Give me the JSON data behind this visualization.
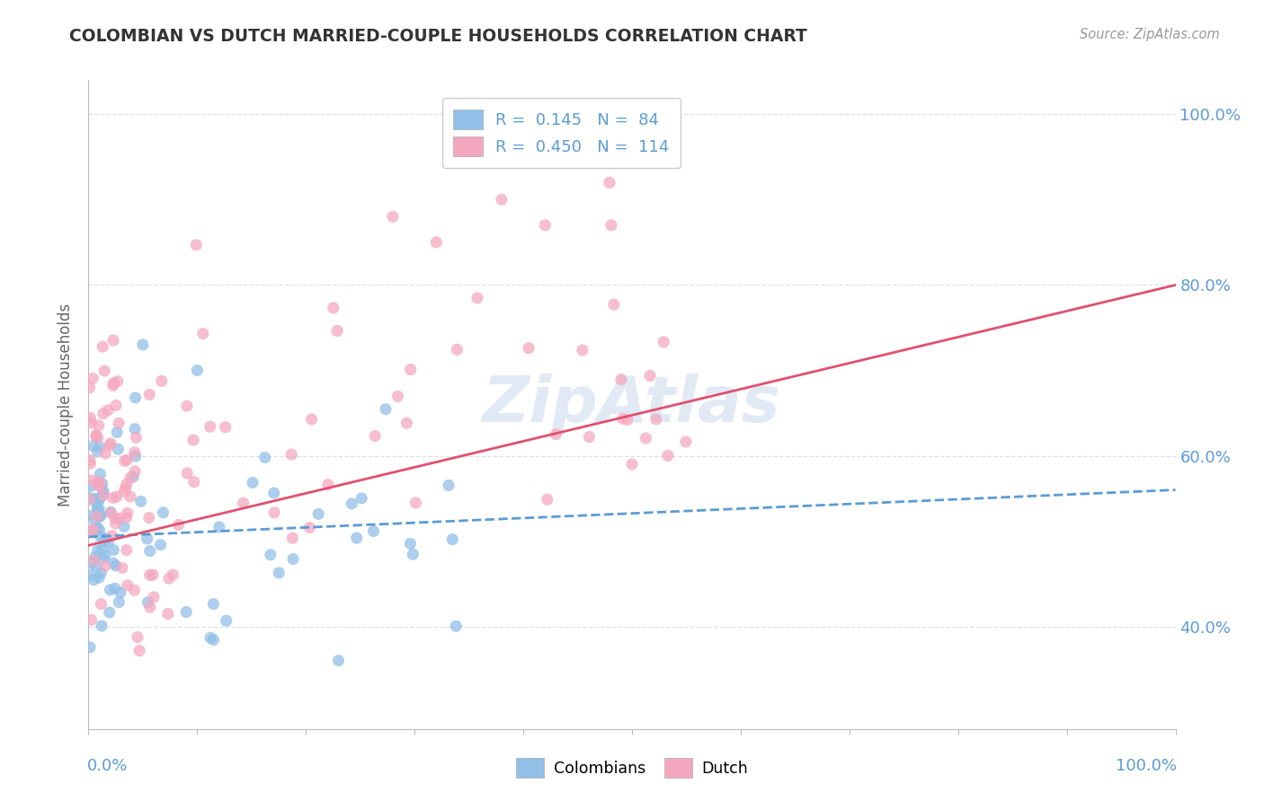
{
  "title": "COLOMBIAN VS DUTCH MARRIED-COUPLE HOUSEHOLDS CORRELATION CHART",
  "source": "Source: ZipAtlas.com",
  "ylabel": "Married-couple Households",
  "legend1_r": "0.145",
  "legend1_n": "84",
  "legend2_r": "0.450",
  "legend2_n": "114",
  "colombian_color": "#92C0E8",
  "dutch_color": "#F4A8C0",
  "line_colombian_color": "#5B9BD5",
  "line_dutch_color": "#E05070",
  "background_color": "#FFFFFF",
  "watermark_color": "#C8D8EC",
  "grid_color": "#D0D8E8",
  "axis_label_color": "#5B9BD5",
  "title_color": "#333333",
  "source_color": "#999999",
  "ylabel_color": "#666666",
  "xlim": [
    0.0,
    1.0
  ],
  "ylim": [
    0.28,
    1.04
  ],
  "yticks": [
    0.4,
    0.6,
    0.8,
    1.0
  ]
}
